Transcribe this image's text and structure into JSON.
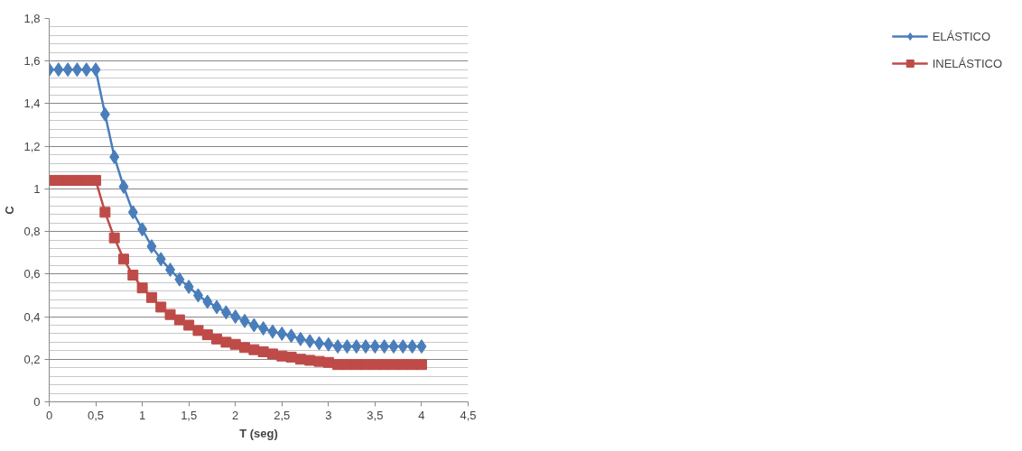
{
  "chart_data": {
    "type": "line",
    "xlabel": "T (seg)",
    "ylabel": "C",
    "x": [
      0,
      0.1,
      0.2,
      0.3,
      0.4,
      0.5,
      0.6,
      0.7,
      0.8,
      0.9,
      1.0,
      1.1,
      1.2,
      1.3,
      1.4,
      1.5,
      1.6,
      1.7,
      1.8,
      1.9,
      2.0,
      2.1,
      2.2,
      2.3,
      2.4,
      2.5,
      2.6,
      2.7,
      2.8,
      2.9,
      3.0,
      3.1,
      3.2,
      3.3,
      3.4,
      3.5,
      3.6,
      3.7,
      3.8,
      3.9,
      4.0
    ],
    "series": [
      {
        "name": "ELÁSTICO",
        "color": "#4a7ebb",
        "marker": "diamond",
        "values": [
          1.56,
          1.56,
          1.56,
          1.56,
          1.56,
          1.56,
          1.35,
          1.15,
          1.01,
          0.89,
          0.81,
          0.73,
          0.67,
          0.62,
          0.575,
          0.54,
          0.5,
          0.47,
          0.445,
          0.42,
          0.4,
          0.38,
          0.36,
          0.345,
          0.33,
          0.32,
          0.31,
          0.295,
          0.285,
          0.275,
          0.27,
          0.26,
          0.26,
          0.26,
          0.26,
          0.26,
          0.26,
          0.26,
          0.26,
          0.26,
          0.26
        ]
      },
      {
        "name": "INELÁSTICO",
        "color": "#be4b48",
        "marker": "square",
        "values": [
          1.04,
          1.04,
          1.04,
          1.04,
          1.04,
          1.04,
          0.89,
          0.77,
          0.67,
          0.595,
          0.535,
          0.49,
          0.445,
          0.41,
          0.385,
          0.36,
          0.335,
          0.315,
          0.295,
          0.28,
          0.27,
          0.255,
          0.245,
          0.235,
          0.225,
          0.215,
          0.21,
          0.2,
          0.195,
          0.19,
          0.185,
          0.175,
          0.175,
          0.175,
          0.175,
          0.175,
          0.175,
          0.175,
          0.175,
          0.175,
          0.175
        ]
      }
    ],
    "xlim": [
      0,
      4.5
    ],
    "xticks": [
      0,
      {
        "value": 0.5,
        "label": "0,5"
      },
      1,
      {
        "value": 1.5,
        "label": "1,5"
      },
      2,
      {
        "value": 2.5,
        "label": "2,5"
      },
      3,
      {
        "value": 3.5,
        "label": "3,5"
      },
      4,
      {
        "value": 4.5,
        "label": "4,5"
      }
    ],
    "ylim": [
      0,
      1.8
    ],
    "yticks": [
      0,
      {
        "value": 0.2,
        "label": "0,2"
      },
      {
        "value": 0.4,
        "label": "0,4"
      },
      {
        "value": 0.6,
        "label": "0,6"
      },
      {
        "value": 0.8,
        "label": "0,8"
      },
      1,
      {
        "value": 1.2,
        "label": "1,2"
      },
      {
        "value": 1.4,
        "label": "1,4"
      },
      {
        "value": 1.6,
        "label": "1,6"
      },
      {
        "value": 1.8,
        "label": "1,8"
      }
    ],
    "grid": "y",
    "legend": "right",
    "line_style": "solid"
  }
}
